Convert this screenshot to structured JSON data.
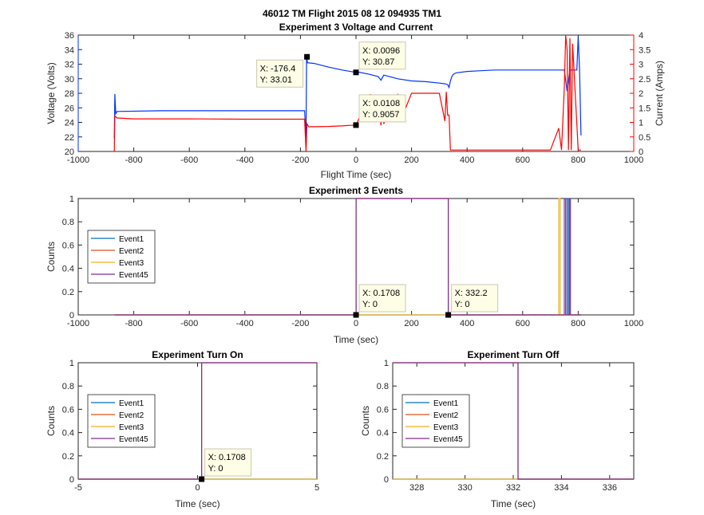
{
  "figure": {
    "suptitle": "46012 TM Flight 2015 08 12 094935 TM1"
  },
  "colors": {
    "blue": "#0033ff",
    "red": "#ff0000",
    "event1": "#0072bd",
    "event2": "#d95319",
    "event3": "#edb120",
    "event45": "#7e2f8e"
  },
  "chart_data": [
    {
      "id": "voltage_current",
      "type": "line",
      "title": "Experiment 3 Voltage and Current",
      "xlabel": "Flight Time (sec)",
      "ylabel": "Voltage (Volts)",
      "ylabel_right": "Current (Amps)",
      "xlim": [
        -1000,
        1000
      ],
      "ylim": [
        20,
        36
      ],
      "ylim_right": [
        0,
        4
      ],
      "xticks": [
        -1000,
        -800,
        -600,
        -400,
        -200,
        0,
        200,
        400,
        600,
        800,
        1000
      ],
      "yticks": [
        20,
        22,
        24,
        26,
        28,
        30,
        32,
        34,
        36
      ],
      "yticks_right": [
        0,
        0.5,
        1,
        1.5,
        2,
        2.5,
        3,
        3.5,
        4
      ],
      "series": [
        {
          "name": "Voltage",
          "axis": "left",
          "color": "#0033ff",
          "x": [
            -870,
            -868,
            -865,
            -862,
            -860,
            -700,
            -500,
            -300,
            -190,
            -185,
            -180,
            -178,
            -176.4,
            -175,
            -150,
            -100,
            -50,
            0,
            10,
            50,
            80,
            90,
            100,
            150,
            200,
            250,
            300,
            320,
            330,
            335,
            340,
            345,
            350,
            360,
            400,
            450,
            500,
            600,
            700,
            740,
            750,
            760,
            770,
            780,
            795,
            800,
            805,
            810
          ],
          "y": [
            21.8,
            27.9,
            25.2,
            25.4,
            25.5,
            25.6,
            25.6,
            25.6,
            25.6,
            25.6,
            21.9,
            33.01,
            33.0,
            32.2,
            32.1,
            31.6,
            31.2,
            30.87,
            30.9,
            30.6,
            30.3,
            29.8,
            30.5,
            30.0,
            29.7,
            29.6,
            29.4,
            29.3,
            29.2,
            28.8,
            29.7,
            30.3,
            30.6,
            30.8,
            31.0,
            31.1,
            31.2,
            31.2,
            31.2,
            31.2,
            31.2,
            28.3,
            31.2,
            31.2,
            31.2,
            35.8,
            31.2,
            22.2
          ]
        },
        {
          "name": "Current",
          "axis": "right",
          "color": "#ff0000",
          "x": [
            -870,
            -868,
            -860,
            -800,
            -600,
            -400,
            -200,
            -185,
            -180,
            -176.4,
            -170,
            -100,
            -50,
            -20,
            0,
            0.0108,
            50,
            80,
            90,
            95,
            100,
            150,
            160,
            200,
            300,
            320,
            325,
            330,
            335,
            340,
            400,
            500,
            600,
            700,
            730,
            740,
            750,
            755,
            760,
            765,
            770,
            775,
            780,
            800,
            810
          ],
          "y": [
            0.0,
            1.22,
            1.15,
            1.12,
            1.12,
            1.11,
            1.11,
            1.11,
            0.0,
            0.95,
            0.85,
            0.86,
            0.88,
            0.9,
            0.9,
            0.9057,
            1.95,
            1.92,
            0.9,
            1.95,
            0.95,
            1.95,
            1.05,
            2.0,
            2.0,
            1.05,
            2.05,
            1.25,
            1.25,
            0.05,
            0.05,
            0.05,
            0.05,
            0.05,
            0.8,
            0.05,
            2.2,
            4.0,
            3.5,
            0.05,
            3.9,
            0.05,
            3.7,
            0.05,
            0.05
          ]
        }
      ],
      "datatips": [
        {
          "x_label": "X: -176.4",
          "y_label": "Y: 33.01",
          "x": -176.4,
          "y": 33.01,
          "axis": "left"
        },
        {
          "x_label": "X: 0.0096",
          "y_label": "Y: 30.87",
          "x": 0.0096,
          "y": 30.87,
          "axis": "left"
        },
        {
          "x_label": "X: 0.0108",
          "y_label": "Y: 0.9057",
          "x": 0.0108,
          "y": 0.9057,
          "axis": "right"
        }
      ]
    },
    {
      "id": "events",
      "type": "line",
      "title": "Experiment 3 Events",
      "xlabel": "Time (sec)",
      "ylabel": "Counts",
      "xlim": [
        -1000,
        1000
      ],
      "ylim": [
        0,
        1
      ],
      "xticks": [
        -1000,
        -800,
        -600,
        -400,
        -200,
        0,
        200,
        400,
        600,
        800,
        1000
      ],
      "yticks": [
        0,
        0.2,
        0.4,
        0.6,
        0.8,
        1
      ],
      "legend": "left",
      "series": [
        {
          "name": "Event1",
          "x": [
            -870,
            760,
            760,
            765,
            765,
            810
          ],
          "y": [
            0,
            0,
            1,
            1,
            0,
            0
          ]
        },
        {
          "name": "Event2",
          "x": [
            -870,
            0.1708,
            0.1708,
            332.2,
            332.2,
            810
          ],
          "y": [
            0,
            0,
            1,
            1,
            0,
            0
          ]
        },
        {
          "name": "Event3",
          "x": [
            -870,
            730,
            730,
            735,
            735,
            810
          ],
          "y": [
            0,
            0,
            1,
            1,
            0,
            0
          ]
        },
        {
          "name": "Event45",
          "x": [
            -870,
            0.1708,
            0.1708,
            332.2,
            332.2,
            750,
            750,
            755,
            755,
            768,
            768,
            772,
            772,
            810
          ],
          "y": [
            0,
            0,
            1,
            1,
            0,
            0,
            1,
            1,
            0,
            0,
            1,
            1,
            0,
            0
          ]
        }
      ],
      "datatips": [
        {
          "x_label": "X: 0.1708",
          "y_label": "Y: 0",
          "x": 0.1708,
          "y": 0
        },
        {
          "x_label": "X: 332.2",
          "y_label": "Y: 0",
          "x": 332.2,
          "y": 0
        }
      ]
    },
    {
      "id": "turn_on",
      "type": "line",
      "title": "Experiment Turn On",
      "xlabel": "Time (sec)",
      "ylabel": "Counts",
      "xlim": [
        -5,
        5
      ],
      "ylim": [
        0,
        1
      ],
      "xticks": [
        -5,
        0,
        5
      ],
      "yticks": [
        0,
        0.2,
        0.4,
        0.6,
        0.8,
        1
      ],
      "legend": "left",
      "series": [
        {
          "name": "Event1",
          "x": [
            -5,
            5
          ],
          "y": [
            0,
            0
          ]
        },
        {
          "name": "Event2",
          "x": [
            -5,
            0.1708,
            0.1708,
            5
          ],
          "y": [
            0,
            0,
            1,
            1
          ]
        },
        {
          "name": "Event3",
          "x": [
            -5,
            5
          ],
          "y": [
            0,
            0
          ]
        },
        {
          "name": "Event45",
          "x": [
            -5,
            0.1708,
            0.1708,
            5
          ],
          "y": [
            0,
            0,
            1,
            1
          ]
        }
      ],
      "datatips": [
        {
          "x_label": "X: 0.1708",
          "y_label": "Y: 0",
          "x": 0.1708,
          "y": 0
        }
      ]
    },
    {
      "id": "turn_off",
      "type": "line",
      "title": "Experiment Turn Off",
      "xlabel": "Time (sec)",
      "ylabel": "Counts",
      "xlim": [
        327,
        337
      ],
      "ylim": [
        0,
        1
      ],
      "xticks": [
        328,
        330,
        332,
        334,
        336
      ],
      "yticks": [
        0,
        0.2,
        0.4,
        0.6,
        0.8,
        1
      ],
      "legend": "left",
      "series": [
        {
          "name": "Event1",
          "x": [
            327,
            337
          ],
          "y": [
            0,
            0
          ]
        },
        {
          "name": "Event2",
          "x": [
            327,
            332.2,
            332.2,
            337
          ],
          "y": [
            1,
            1,
            0,
            0
          ]
        },
        {
          "name": "Event3",
          "x": [
            327,
            337
          ],
          "y": [
            0,
            0
          ]
        },
        {
          "name": "Event45",
          "x": [
            327,
            332.2,
            332.2,
            337
          ],
          "y": [
            1,
            1,
            0,
            0
          ]
        }
      ],
      "datatips": []
    }
  ]
}
